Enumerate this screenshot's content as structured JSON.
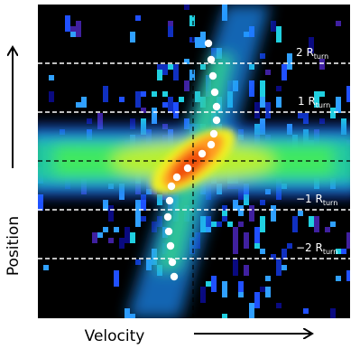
{
  "xlabel": "Velocity",
  "ylabel": "Position",
  "annotations": [
    {
      "text": "2 R",
      "sub": "turn"
    },
    {
      "text": "1 R",
      "sub": "turn"
    },
    {
      "text": "−1 R",
      "sub": "turn"
    },
    {
      "text": "−2 R",
      "sub": "turn"
    }
  ]
}
